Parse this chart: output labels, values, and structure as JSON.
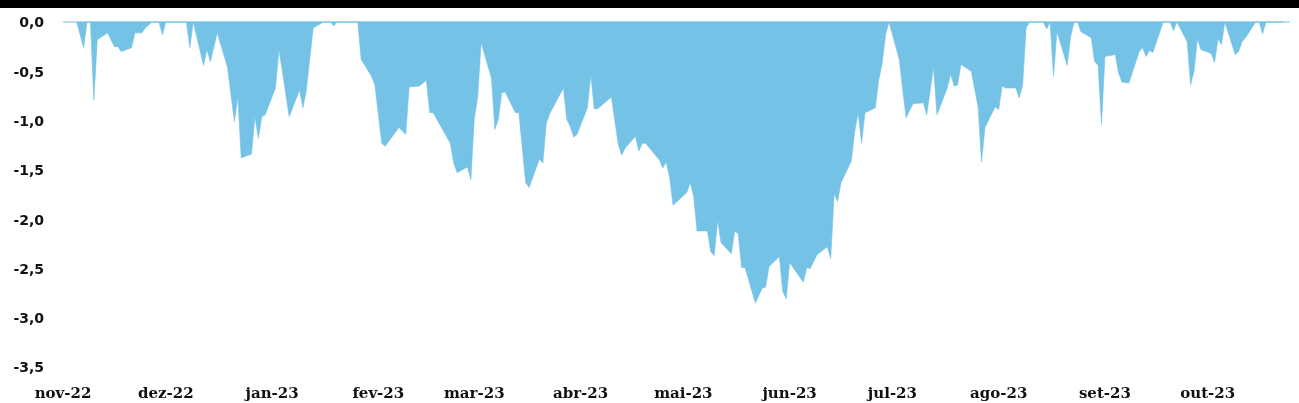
{
  "chart_data": {
    "type": "area",
    "color": "#74c2e6",
    "x": [
      "2022-11-05",
      "2022-11-07",
      "2022-11-08",
      "2022-11-09",
      "2022-11-10",
      "2022-11-11",
      "2022-11-14",
      "2022-11-16",
      "2022-11-17",
      "2022-11-18",
      "2022-11-21",
      "2022-11-22",
      "2022-11-24",
      "2022-11-25",
      "2022-11-27",
      "2022-11-29",
      "2022-11-30",
      "2022-12-01",
      "2022-12-07",
      "2022-12-08",
      "2022-12-09",
      "2022-12-12",
      "2022-12-13",
      "2022-12-14",
      "2022-12-16",
      "2022-12-19",
      "2022-12-21",
      "2022-12-22",
      "2022-12-23",
      "2022-12-26",
      "2022-12-27",
      "2022-12-28",
      "2022-12-29",
      "2022-12-30",
      "2023-01-02",
      "2023-01-03",
      "2023-01-04",
      "2023-01-06",
      "2023-01-09",
      "2023-01-10",
      "2023-01-11",
      "2023-01-13",
      "2023-01-16",
      "2023-01-18",
      "2023-01-19",
      "2023-01-20",
      "2023-01-26",
      "2023-01-27",
      "2023-01-30",
      "2023-01-31",
      "2023-02-02",
      "2023-02-03",
      "2023-02-07",
      "2023-02-09",
      "2023-02-10",
      "2023-02-13",
      "2023-02-15",
      "2023-02-16",
      "2023-02-17",
      "2023-02-22",
      "2023-02-23",
      "2023-02-24",
      "2023-02-27",
      "2023-02-28",
      "2023-03-01",
      "2023-03-02",
      "2023-03-03",
      "2023-03-06",
      "2023-03-07",
      "2023-03-08",
      "2023-03-09",
      "2023-03-10",
      "2023-03-13",
      "2023-03-14",
      "2023-03-16",
      "2023-03-17",
      "2023-03-20",
      "2023-03-21",
      "2023-03-22",
      "2023-03-23",
      "2023-03-27",
      "2023-03-28",
      "2023-03-29",
      "2023-03-30",
      "2023-03-31",
      "2023-04-03",
      "2023-04-04",
      "2023-04-05",
      "2023-04-06",
      "2023-04-10",
      "2023-04-12",
      "2023-04-13",
      "2023-04-14",
      "2023-04-17",
      "2023-04-18",
      "2023-04-19",
      "2023-04-20",
      "2023-04-24",
      "2023-04-25",
      "2023-04-26",
      "2023-04-27",
      "2023-04-28",
      "2023-05-02",
      "2023-05-03",
      "2023-05-04",
      "2023-05-05",
      "2023-05-08",
      "2023-05-09",
      "2023-05-10",
      "2023-05-11",
      "2023-05-12",
      "2023-05-15",
      "2023-05-16",
      "2023-05-17",
      "2023-05-18",
      "2023-05-19",
      "2023-05-22",
      "2023-05-24",
      "2023-05-25",
      "2023-05-26",
      "2023-05-29",
      "2023-05-30",
      "2023-05-31",
      "2023-06-01",
      "2023-06-05",
      "2023-06-06",
      "2023-06-07",
      "2023-06-09",
      "2023-06-12",
      "2023-06-13",
      "2023-06-14",
      "2023-06-15",
      "2023-06-16",
      "2023-06-19",
      "2023-06-20",
      "2023-06-21",
      "2023-06-22",
      "2023-06-23",
      "2023-06-26",
      "2023-06-27",
      "2023-06-28",
      "2023-06-29",
      "2023-06-30",
      "2023-07-03",
      "2023-07-04",
      "2023-07-05",
      "2023-07-07",
      "2023-07-10",
      "2023-07-11",
      "2023-07-13",
      "2023-07-14",
      "2023-07-17",
      "2023-07-18",
      "2023-07-19",
      "2023-07-20",
      "2023-07-21",
      "2023-07-24",
      "2023-07-26",
      "2023-07-27",
      "2023-07-28",
      "2023-07-31",
      "2023-08-01",
      "2023-08-02",
      "2023-08-03",
      "2023-08-06",
      "2023-08-07",
      "2023-08-08",
      "2023-08-09",
      "2023-08-10",
      "2023-08-14",
      "2023-08-15",
      "2023-08-16",
      "2023-08-17",
      "2023-08-18",
      "2023-08-21",
      "2023-08-22",
      "2023-08-23",
      "2023-08-24",
      "2023-08-25",
      "2023-08-28",
      "2023-08-29",
      "2023-08-30",
      "2023-08-31",
      "2023-09-01",
      "2023-09-04",
      "2023-09-05",
      "2023-09-06",
      "2023-09-08",
      "2023-09-11",
      "2023-09-12",
      "2023-09-13",
      "2023-09-14",
      "2023-09-15",
      "2023-09-18",
      "2023-09-20",
      "2023-09-21",
      "2023-09-22",
      "2023-09-25",
      "2023-09-26",
      "2023-09-27",
      "2023-09-28",
      "2023-09-29",
      "2023-10-02",
      "2023-10-03",
      "2023-10-04",
      "2023-10-05",
      "2023-10-06",
      "2023-10-09",
      "2023-10-10",
      "2023-10-11",
      "2023-10-12",
      "2023-10-15",
      "2023-10-16",
      "2023-10-17",
      "2023-10-18",
      "2023-10-23"
    ],
    "values": [
      0,
      -0.26,
      0,
      0,
      -0.79,
      -0.18,
      -0.11,
      -0.25,
      -0.25,
      -0.3,
      -0.26,
      -0.11,
      -0.11,
      -0.06,
      0,
      0,
      -0.13,
      0,
      0,
      -0.26,
      0,
      -0.44,
      -0.28,
      -0.4,
      -0.11,
      -0.46,
      -1.01,
      -0.76,
      -1.38,
      -1.34,
      -0.96,
      -1.18,
      -0.96,
      -0.94,
      -0.67,
      -0.28,
      -0.5,
      -0.96,
      -0.69,
      -0.87,
      -0.69,
      -0.06,
      0,
      0,
      -0.04,
      0,
      0,
      -0.38,
      -0.55,
      -0.64,
      -1.23,
      -1.26,
      -1.07,
      -1.14,
      -0.66,
      -0.65,
      -0.59,
      -0.92,
      -0.92,
      -1.23,
      -1.43,
      -1.53,
      -1.47,
      -1.6,
      -0.98,
      -0.76,
      -0.21,
      -0.57,
      -1.09,
      -0.99,
      -0.72,
      -0.71,
      -0.92,
      -0.92,
      -1.63,
      -1.68,
      -1.39,
      -1.43,
      -1.03,
      -0.93,
      -0.67,
      -0.99,
      -1.06,
      -1.17,
      -1.14,
      -0.87,
      -0.54,
      -0.88,
      -0.88,
      -0.76,
      -1.24,
      -1.35,
      -1.28,
      -1.16,
      -1.31,
      -1.23,
      -1.23,
      -1.4,
      -1.48,
      -1.42,
      -1.58,
      -1.86,
      -1.73,
      -1.63,
      -1.77,
      -2.12,
      -2.12,
      -2.33,
      -2.37,
      -2.01,
      -2.24,
      -2.35,
      -2.12,
      -2.15,
      -2.49,
      -2.49,
      -2.85,
      -2.7,
      -2.69,
      -2.48,
      -2.38,
      -2.73,
      -2.81,
      -2.44,
      -2.64,
      -2.49,
      -2.5,
      -2.36,
      -2.28,
      -2.4,
      -1.74,
      -1.82,
      -1.63,
      -1.41,
      -1.11,
      -0.92,
      -1.23,
      -0.92,
      -0.87,
      -0.59,
      -0.42,
      -0.13,
      0,
      -0.38,
      -0.69,
      -0.97,
      -0.83,
      -0.82,
      -0.94,
      -0.46,
      -0.94,
      -0.67,
      -0.53,
      -0.65,
      -0.64,
      -0.43,
      -0.5,
      -0.86,
      -1.42,
      -1.07,
      -0.86,
      -0.89,
      -0.65,
      -0.67,
      -0.67,
      -0.77,
      -0.64,
      -0.06,
      0,
      0,
      -0.07,
      0,
      -0.55,
      -0.1,
      -0.44,
      -0.15,
      0,
      0,
      -0.1,
      -0.16,
      -0.4,
      -0.44,
      -1.04,
      -0.35,
      -0.33,
      -0.52,
      -0.61,
      -0.62,
      -0.3,
      -0.26,
      -0.35,
      -0.29,
      -0.31,
      0,
      0,
      -0.09,
      0,
      -0.2,
      -0.64,
      -0.5,
      -0.17,
      -0.28,
      -0.32,
      -0.41,
      -0.17,
      -0.23,
      0,
      -0.33,
      -0.3,
      -0.2,
      -0.16,
      0,
      0,
      -0.12,
      0,
      0
    ],
    "xlim": [
      "2022-11-01",
      "2023-10-25"
    ],
    "xticks": [
      {
        "value": "2022-11-01",
        "label": "nov-22"
      },
      {
        "value": "2022-12-01",
        "label": "dez-22"
      },
      {
        "value": "2023-01-01",
        "label": "jan-23"
      },
      {
        "value": "2023-02-01",
        "label": "fev-23"
      },
      {
        "value": "2023-03-01",
        "label": "mar-23"
      },
      {
        "value": "2023-04-01",
        "label": "abr-23"
      },
      {
        "value": "2023-05-01",
        "label": "mai-23"
      },
      {
        "value": "2023-06-01",
        "label": "jun-23"
      },
      {
        "value": "2023-07-01",
        "label": "jul-23"
      },
      {
        "value": "2023-08-01",
        "label": "ago-23"
      },
      {
        "value": "2023-09-01",
        "label": "set-23"
      },
      {
        "value": "2023-10-01",
        "label": "out-23"
      }
    ],
    "ylim": [
      -3.5,
      0
    ],
    "yticks": [
      {
        "value": 0,
        "label": "0,0"
      },
      {
        "value": -0.5,
        "label": "-0,5"
      },
      {
        "value": -1,
        "label": "-1,0"
      },
      {
        "value": -1.5,
        "label": "-1,5"
      },
      {
        "value": -2,
        "label": "-2,0"
      },
      {
        "value": -2.5,
        "label": "-2,5"
      },
      {
        "value": -3,
        "label": "-3,0"
      },
      {
        "value": -3.5,
        "label": "-3,5"
      }
    ]
  }
}
